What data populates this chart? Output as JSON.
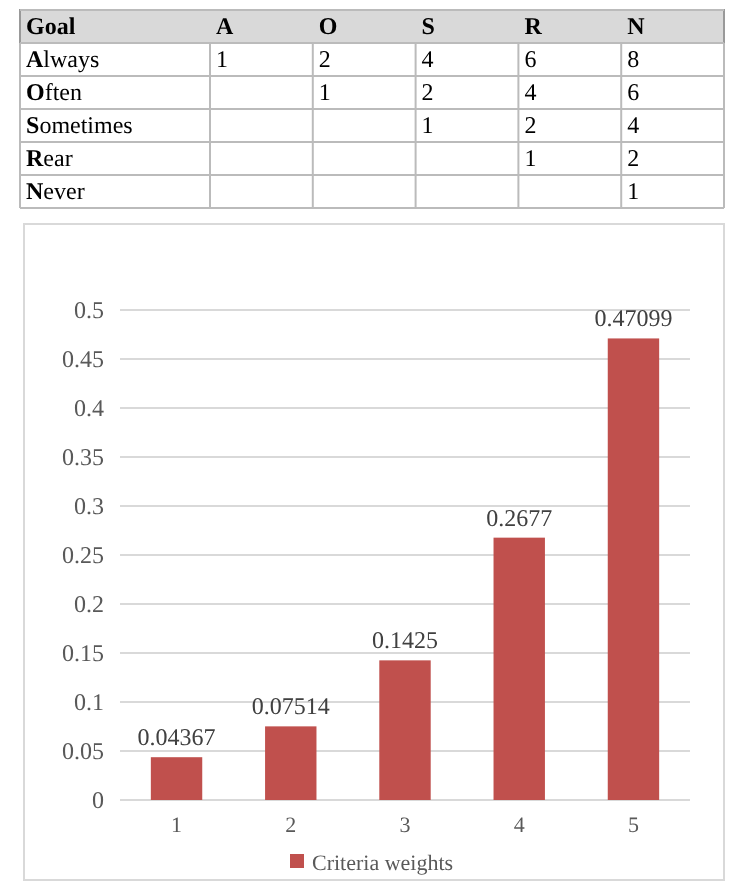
{
  "chart_data": [
    {
      "type": "heatmap",
      "ylabel": "Goal",
      "categories": [
        "A",
        "O",
        "S",
        "R",
        "N"
      ],
      "y_categories": [
        "Always",
        "Often",
        "Sometimes",
        "Rear",
        "Never"
      ],
      "cells": [
        [
          1,
          2,
          4,
          6,
          8
        ],
        [
          null,
          1,
          2,
          4,
          6
        ],
        [
          null,
          null,
          1,
          2,
          4
        ],
        [
          null,
          null,
          null,
          1,
          2
        ],
        [
          null,
          null,
          null,
          null,
          1
        ]
      ],
      "data_labels": true
    },
    {
      "type": "bar",
      "categories": [
        "1",
        "2",
        "3",
        "4",
        "5"
      ],
      "series": [
        {
          "name": "Criteria weights",
          "color": "#c0504d",
          "values": [
            0.04367,
            0.07514,
            0.1425,
            0.2677,
            0.47099
          ]
        }
      ],
      "ylim": [
        0,
        0.5
      ],
      "yticks": [
        0,
        0.05,
        0.1,
        0.15,
        0.2,
        0.25,
        0.3,
        0.35,
        0.4,
        0.45,
        0.5
      ],
      "grid": "y",
      "legend": "bottom",
      "data_labels": true
    }
  ]
}
